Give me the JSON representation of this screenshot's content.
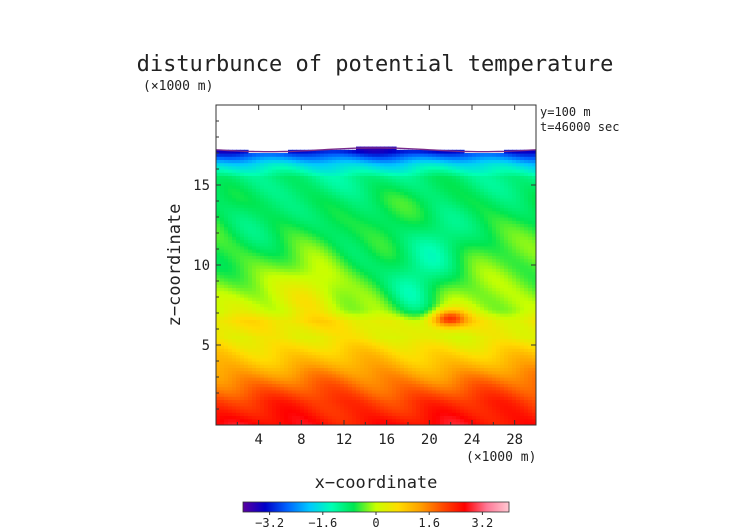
{
  "chart_data": {
    "type": "heatmap",
    "title": "disturbunce of potential temperature",
    "y_unit": "(×1000 m)",
    "x_unit": "(×1000 m)",
    "xlabel": "x−coordinate",
    "ylabel": "z−coordinate",
    "annotations": [
      "y=100 m",
      "t=46000 sec"
    ],
    "xlim": [
      0,
      30
    ],
    "ylim": [
      0,
      20
    ],
    "x_ticks": [
      4,
      8,
      12,
      16,
      20,
      24,
      28
    ],
    "x_tick_labels": [
      "4",
      "8",
      "12",
      "16",
      "20",
      "24",
      "28"
    ],
    "y_ticks": [
      5,
      10,
      15
    ],
    "y_tick_labels": [
      "5",
      "10",
      "15"
    ],
    "colorbar": {
      "min": -4.0,
      "max": 4.0,
      "ticks": [
        -3.2,
        -1.6,
        0,
        1.6,
        3.2
      ],
      "tick_labels": [
        "−3.2",
        "−1.6",
        "0",
        "1.6",
        "3.2"
      ],
      "colors": [
        "#5a00a0",
        "#0000c8",
        "#0064ff",
        "#00c8ff",
        "#00ffb4",
        "#00e650",
        "#c8ff00",
        "#ffdc00",
        "#ffa000",
        "#ff4b00",
        "#ff0000",
        "#ff7896",
        "#ffc8d2"
      ]
    },
    "field_top_km": 17.2,
    "background_profile": [
      {
        "z": 0.0,
        "value": 2.6
      },
      {
        "z": 1.5,
        "value": 2.2
      },
      {
        "z": 2.8,
        "value": 1.6
      },
      {
        "z": 4.0,
        "value": 1.0
      },
      {
        "z": 5.5,
        "value": 0.4
      },
      {
        "z": 6.5,
        "value": 0.5
      },
      {
        "z": 7.2,
        "value": 0.0
      },
      {
        "z": 10.0,
        "value": -0.4
      },
      {
        "z": 14.0,
        "value": -0.7
      },
      {
        "z": 15.5,
        "value": -1.0
      },
      {
        "z": 16.3,
        "value": -1.8
      },
      {
        "z": 16.8,
        "value": -2.6
      },
      {
        "z": 17.2,
        "value": -3.4
      }
    ],
    "features": [
      {
        "x": 21.8,
        "z": 6.7,
        "value": 2.6
      },
      {
        "x": 18.5,
        "z": 8.0,
        "value": -1.3
      },
      {
        "x": 21.0,
        "z": 11.0,
        "value": -1.1
      },
      {
        "x": 3.5,
        "z": 13.0,
        "value": -0.9
      },
      {
        "x": 13.0,
        "z": 11.5,
        "value": -0.9
      },
      {
        "x": 9.0,
        "z": 8.0,
        "value": 0.5
      }
    ]
  }
}
